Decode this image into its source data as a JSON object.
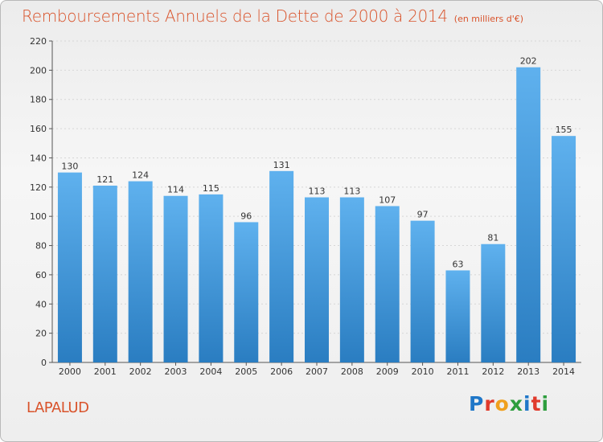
{
  "header": {
    "title": "Remboursements Annuels de la Dette de 2000 à 2014",
    "unit": "(en milliers d'€)"
  },
  "footer": {
    "commune": "LAPALUD",
    "brand_letters": [
      "P",
      "r",
      "o",
      "x",
      "i",
      "t",
      "i"
    ],
    "brand_colors": [
      "#1f77c8",
      "#e03a2c",
      "#f0a01e",
      "#2e9e3e",
      "#1f77c8",
      "#e03a2c",
      "#2e9e3e"
    ]
  },
  "colors": {
    "bar_top": "#5fb1ee",
    "bar_bottom": "#2a7dc1",
    "title": "#d9532b",
    "grid": "#d6d6d6"
  },
  "chart_data": {
    "type": "bar",
    "title": "Remboursements Annuels de la Dette de 2000 à 2014",
    "subtitle": "(en milliers d'€)",
    "xlabel": "",
    "ylabel": "",
    "categories": [
      "2000",
      "2001",
      "2002",
      "2003",
      "2004",
      "2005",
      "2006",
      "2007",
      "2008",
      "2009",
      "2010",
      "2011",
      "2012",
      "2013",
      "2014"
    ],
    "values": [
      130,
      121,
      124,
      114,
      115,
      96,
      131,
      113,
      113,
      107,
      97,
      63,
      81,
      202,
      155
    ],
    "ylim": [
      0,
      220
    ],
    "yticks": [
      0,
      20,
      40,
      60,
      80,
      100,
      120,
      140,
      160,
      180,
      200,
      220
    ],
    "grid": true
  }
}
